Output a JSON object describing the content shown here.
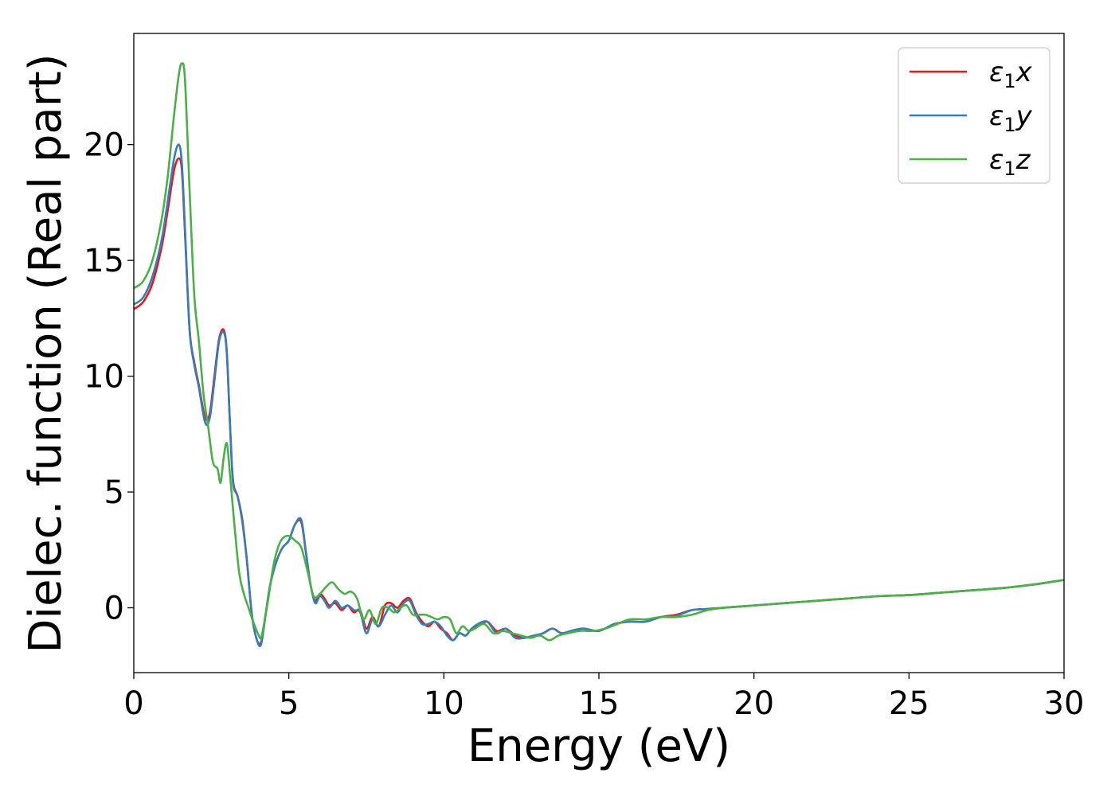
{
  "chart_data": {
    "type": "line",
    "title": "",
    "xlabel": "Energy (eV)",
    "ylabel": "Dielec. function (Real part)",
    "xlim": [
      0,
      30
    ],
    "ylim": [
      -2.8,
      24.8
    ],
    "xticks": [
      0,
      5,
      10,
      15,
      20,
      25,
      30
    ],
    "yticks": [
      0,
      5,
      10,
      15,
      20
    ],
    "grid": false,
    "legend_position": "top-right",
    "series": [
      {
        "name": "ε₁x",
        "legend": {
          "base": "ε",
          "sub": "1",
          "axis": "x"
        },
        "color": "#e41a1c",
        "x": [
          0,
          0.3,
          0.6,
          0.9,
          1.1,
          1.3,
          1.45,
          1.55,
          1.65,
          1.8,
          1.95,
          2.1,
          2.3,
          2.45,
          2.6,
          2.75,
          2.9,
          3.0,
          3.1,
          3.2,
          3.35,
          3.5,
          3.65,
          3.8,
          3.95,
          4.1,
          4.25,
          4.4,
          4.6,
          4.8,
          5.0,
          5.2,
          5.4,
          5.55,
          5.7,
          5.85,
          6.0,
          6.15,
          6.3,
          6.5,
          6.7,
          6.9,
          7.1,
          7.3,
          7.5,
          7.7,
          7.9,
          8.1,
          8.3,
          8.5,
          8.7,
          8.9,
          9.1,
          9.3,
          9.5,
          9.7,
          9.9,
          10.1,
          10.3,
          10.5,
          10.7,
          10.9,
          11.1,
          11.4,
          11.7,
          12.0,
          12.3,
          12.6,
          12.9,
          13.2,
          13.5,
          13.8,
          14.1,
          14.5,
          15.0,
          15.5,
          16.0,
          16.5,
          17.0,
          17.5,
          18.0,
          18.5,
          19.0,
          19.5,
          20.0,
          21.0,
          22.0,
          23.0,
          24.0,
          25.0,
          26.0,
          27.0,
          28.0,
          29.0,
          29.5,
          30.0
        ],
        "y": [
          12.9,
          13.2,
          14.0,
          15.6,
          17.2,
          18.9,
          19.4,
          18.9,
          16.2,
          12.0,
          10.6,
          9.6,
          8.2,
          8.4,
          10.0,
          11.6,
          12.0,
          11.0,
          8.0,
          5.5,
          4.8,
          3.8,
          2.0,
          -0.2,
          -1.3,
          -1.5,
          -0.3,
          1.0,
          2.0,
          2.6,
          2.9,
          3.6,
          3.7,
          2.4,
          1.0,
          0.3,
          0.6,
          0.4,
          0.1,
          0.2,
          -0.1,
          0.1,
          -0.2,
          -0.1,
          -0.9,
          -0.4,
          -0.8,
          0.1,
          0.2,
          0.0,
          0.3,
          0.4,
          -0.2,
          -0.6,
          -0.8,
          -0.6,
          -0.9,
          -1.1,
          -1.4,
          -1.1,
          -1.2,
          -0.9,
          -0.8,
          -0.6,
          -1.0,
          -0.9,
          -1.2,
          -1.3,
          -1.2,
          -1.1,
          -0.9,
          -1.1,
          -1.0,
          -0.9,
          -1.0,
          -0.7,
          -0.6,
          -0.6,
          -0.4,
          -0.3,
          -0.1,
          -0.05,
          0.0,
          0.05,
          0.1,
          0.2,
          0.3,
          0.4,
          0.5,
          0.55,
          0.65,
          0.75,
          0.85,
          1.0,
          1.1,
          1.2
        ]
      },
      {
        "name": "ε₁y",
        "legend": {
          "base": "ε",
          "sub": "1",
          "axis": "y"
        },
        "color": "#377eb8",
        "x": [
          0,
          0.3,
          0.6,
          0.9,
          1.1,
          1.3,
          1.45,
          1.55,
          1.65,
          1.8,
          1.95,
          2.1,
          2.3,
          2.45,
          2.6,
          2.75,
          2.9,
          3.0,
          3.1,
          3.2,
          3.35,
          3.5,
          3.65,
          3.8,
          3.95,
          4.1,
          4.25,
          4.4,
          4.6,
          4.8,
          5.0,
          5.2,
          5.4,
          5.55,
          5.7,
          5.85,
          6.0,
          6.15,
          6.3,
          6.5,
          6.7,
          6.9,
          7.1,
          7.3,
          7.5,
          7.7,
          7.9,
          8.1,
          8.3,
          8.5,
          8.7,
          8.9,
          9.1,
          9.3,
          9.5,
          9.7,
          9.9,
          10.1,
          10.3,
          10.5,
          10.7,
          10.9,
          11.1,
          11.4,
          11.7,
          12.0,
          12.3,
          12.6,
          12.9,
          13.2,
          13.5,
          13.8,
          14.1,
          14.5,
          15.0,
          15.5,
          16.0,
          16.5,
          17.0,
          17.5,
          18.0,
          18.5,
          19.0,
          19.5,
          20.0,
          21.0,
          22.0,
          23.0,
          24.0,
          25.0,
          26.0,
          27.0,
          28.0,
          29.0,
          29.5,
          30.0
        ],
        "y": [
          13.1,
          13.4,
          14.3,
          15.9,
          17.6,
          19.4,
          20.0,
          19.2,
          16.4,
          12.0,
          10.5,
          9.5,
          8.0,
          8.2,
          9.8,
          11.5,
          11.9,
          11.0,
          8.0,
          5.4,
          4.8,
          3.7,
          2.0,
          -0.2,
          -1.3,
          -1.6,
          -0.3,
          1.0,
          2.0,
          2.6,
          2.9,
          3.6,
          3.8,
          2.4,
          1.0,
          0.2,
          0.5,
          0.3,
          0.0,
          0.3,
          0.0,
          0.1,
          -0.1,
          -0.2,
          -1.1,
          -0.5,
          -0.8,
          -0.3,
          0.1,
          -0.2,
          0.2,
          0.3,
          -0.3,
          -0.7,
          -0.7,
          -0.6,
          -0.8,
          -1.2,
          -1.4,
          -1.1,
          -1.2,
          -0.9,
          -0.7,
          -0.6,
          -1.1,
          -0.9,
          -1.3,
          -1.3,
          -1.2,
          -1.1,
          -0.9,
          -1.1,
          -1.0,
          -0.9,
          -1.0,
          -0.7,
          -0.6,
          -0.6,
          -0.4,
          -0.35,
          -0.1,
          -0.05,
          0.0,
          0.05,
          0.1,
          0.2,
          0.3,
          0.4,
          0.5,
          0.55,
          0.65,
          0.75,
          0.85,
          1.0,
          1.1,
          1.2
        ]
      },
      {
        "name": "ε₁z",
        "legend": {
          "base": "ε",
          "sub": "1",
          "axis": "z"
        },
        "color": "#4daf4a",
        "x": [
          0,
          0.3,
          0.6,
          0.9,
          1.1,
          1.3,
          1.45,
          1.55,
          1.65,
          1.8,
          1.95,
          2.1,
          2.25,
          2.4,
          2.55,
          2.7,
          2.8,
          2.9,
          3.0,
          3.1,
          3.25,
          3.4,
          3.55,
          3.7,
          3.85,
          4.0,
          4.1,
          4.2,
          4.35,
          4.5,
          4.65,
          4.8,
          5.0,
          5.2,
          5.4,
          5.6,
          5.8,
          6.0,
          6.2,
          6.4,
          6.6,
          6.8,
          7.0,
          7.2,
          7.4,
          7.6,
          7.8,
          8.0,
          8.2,
          8.4,
          8.6,
          8.8,
          9.0,
          9.2,
          9.4,
          9.6,
          9.8,
          10.0,
          10.2,
          10.4,
          10.6,
          10.8,
          11.0,
          11.3,
          11.6,
          11.9,
          12.2,
          12.5,
          12.8,
          13.1,
          13.4,
          13.7,
          14.0,
          14.4,
          14.8,
          15.2,
          15.6,
          16.0,
          16.5,
          17.0,
          17.5,
          18.0,
          18.5,
          19.0,
          19.5,
          20.0,
          21.0,
          22.0,
          23.0,
          24.0,
          25.0,
          26.0,
          27.0,
          28.0,
          29.0,
          29.5,
          30.0
        ],
        "y": [
          13.8,
          14.1,
          15.0,
          16.8,
          18.7,
          21.3,
          23.0,
          23.5,
          22.8,
          18.0,
          13.5,
          11.5,
          9.2,
          7.8,
          6.3,
          6.0,
          5.4,
          6.5,
          7.1,
          5.8,
          3.5,
          1.5,
          0.6,
          0.0,
          -0.6,
          -1.1,
          -1.3,
          -0.7,
          0.5,
          1.8,
          2.6,
          3.0,
          3.1,
          2.9,
          2.6,
          1.6,
          0.5,
          0.6,
          0.9,
          1.1,
          0.8,
          0.6,
          0.7,
          0.4,
          -0.5,
          -0.1,
          -0.7,
          0.0,
          0.0,
          -0.2,
          0.0,
          0.1,
          -0.3,
          -0.3,
          -0.3,
          -0.4,
          -0.5,
          -0.4,
          -0.5,
          -1.1,
          -0.8,
          -1.0,
          -0.9,
          -0.7,
          -1.1,
          -1.0,
          -1.1,
          -1.2,
          -1.3,
          -1.2,
          -1.4,
          -1.2,
          -1.1,
          -1.0,
          -1.0,
          -0.9,
          -0.7,
          -0.5,
          -0.5,
          -0.4,
          -0.4,
          -0.3,
          -0.1,
          0.0,
          0.05,
          0.1,
          0.2,
          0.3,
          0.4,
          0.5,
          0.55,
          0.65,
          0.75,
          0.85,
          1.0,
          1.1,
          1.2
        ]
      }
    ]
  }
}
